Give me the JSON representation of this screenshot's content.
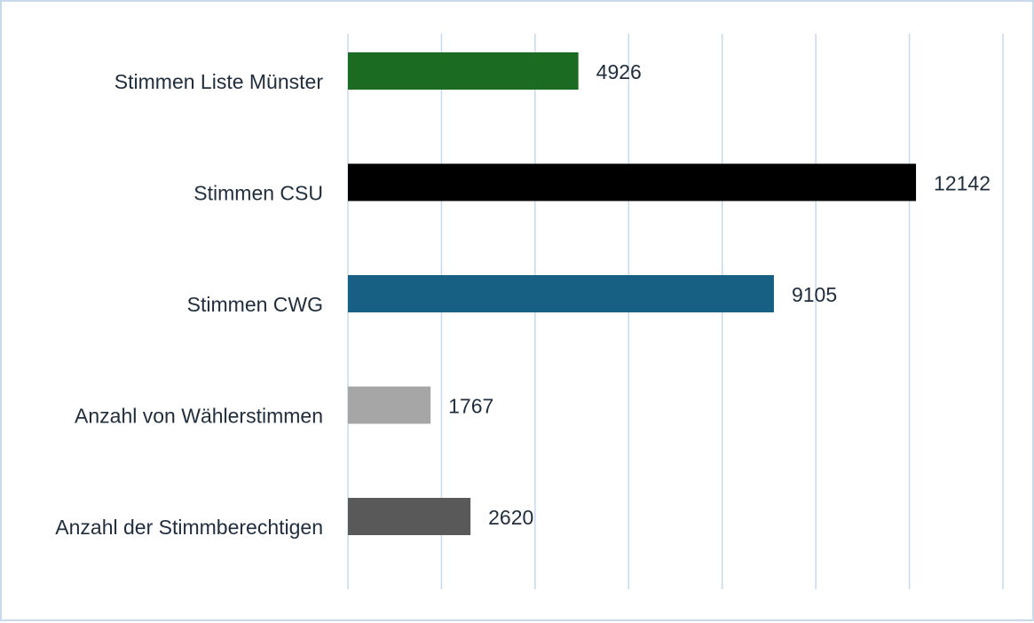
{
  "chart_data": {
    "type": "bar",
    "orientation": "horizontal",
    "categories": [
      "Stimmen Liste Münster",
      "Stimmen CSU",
      "Stimmen CWG",
      "Anzahl von Wählerstimmen",
      "Anzahl der Stimmberechtigen"
    ],
    "values": [
      4926,
      12142,
      9105,
      1767,
      2620
    ],
    "colors": [
      "#1c6b23",
      "#000000",
      "#176083",
      "#a6a6a6",
      "#595959"
    ],
    "xlim": [
      0,
      14000
    ],
    "grid_step": 2000,
    "grid": true,
    "title": "",
    "xlabel": "",
    "ylabel": ""
  }
}
